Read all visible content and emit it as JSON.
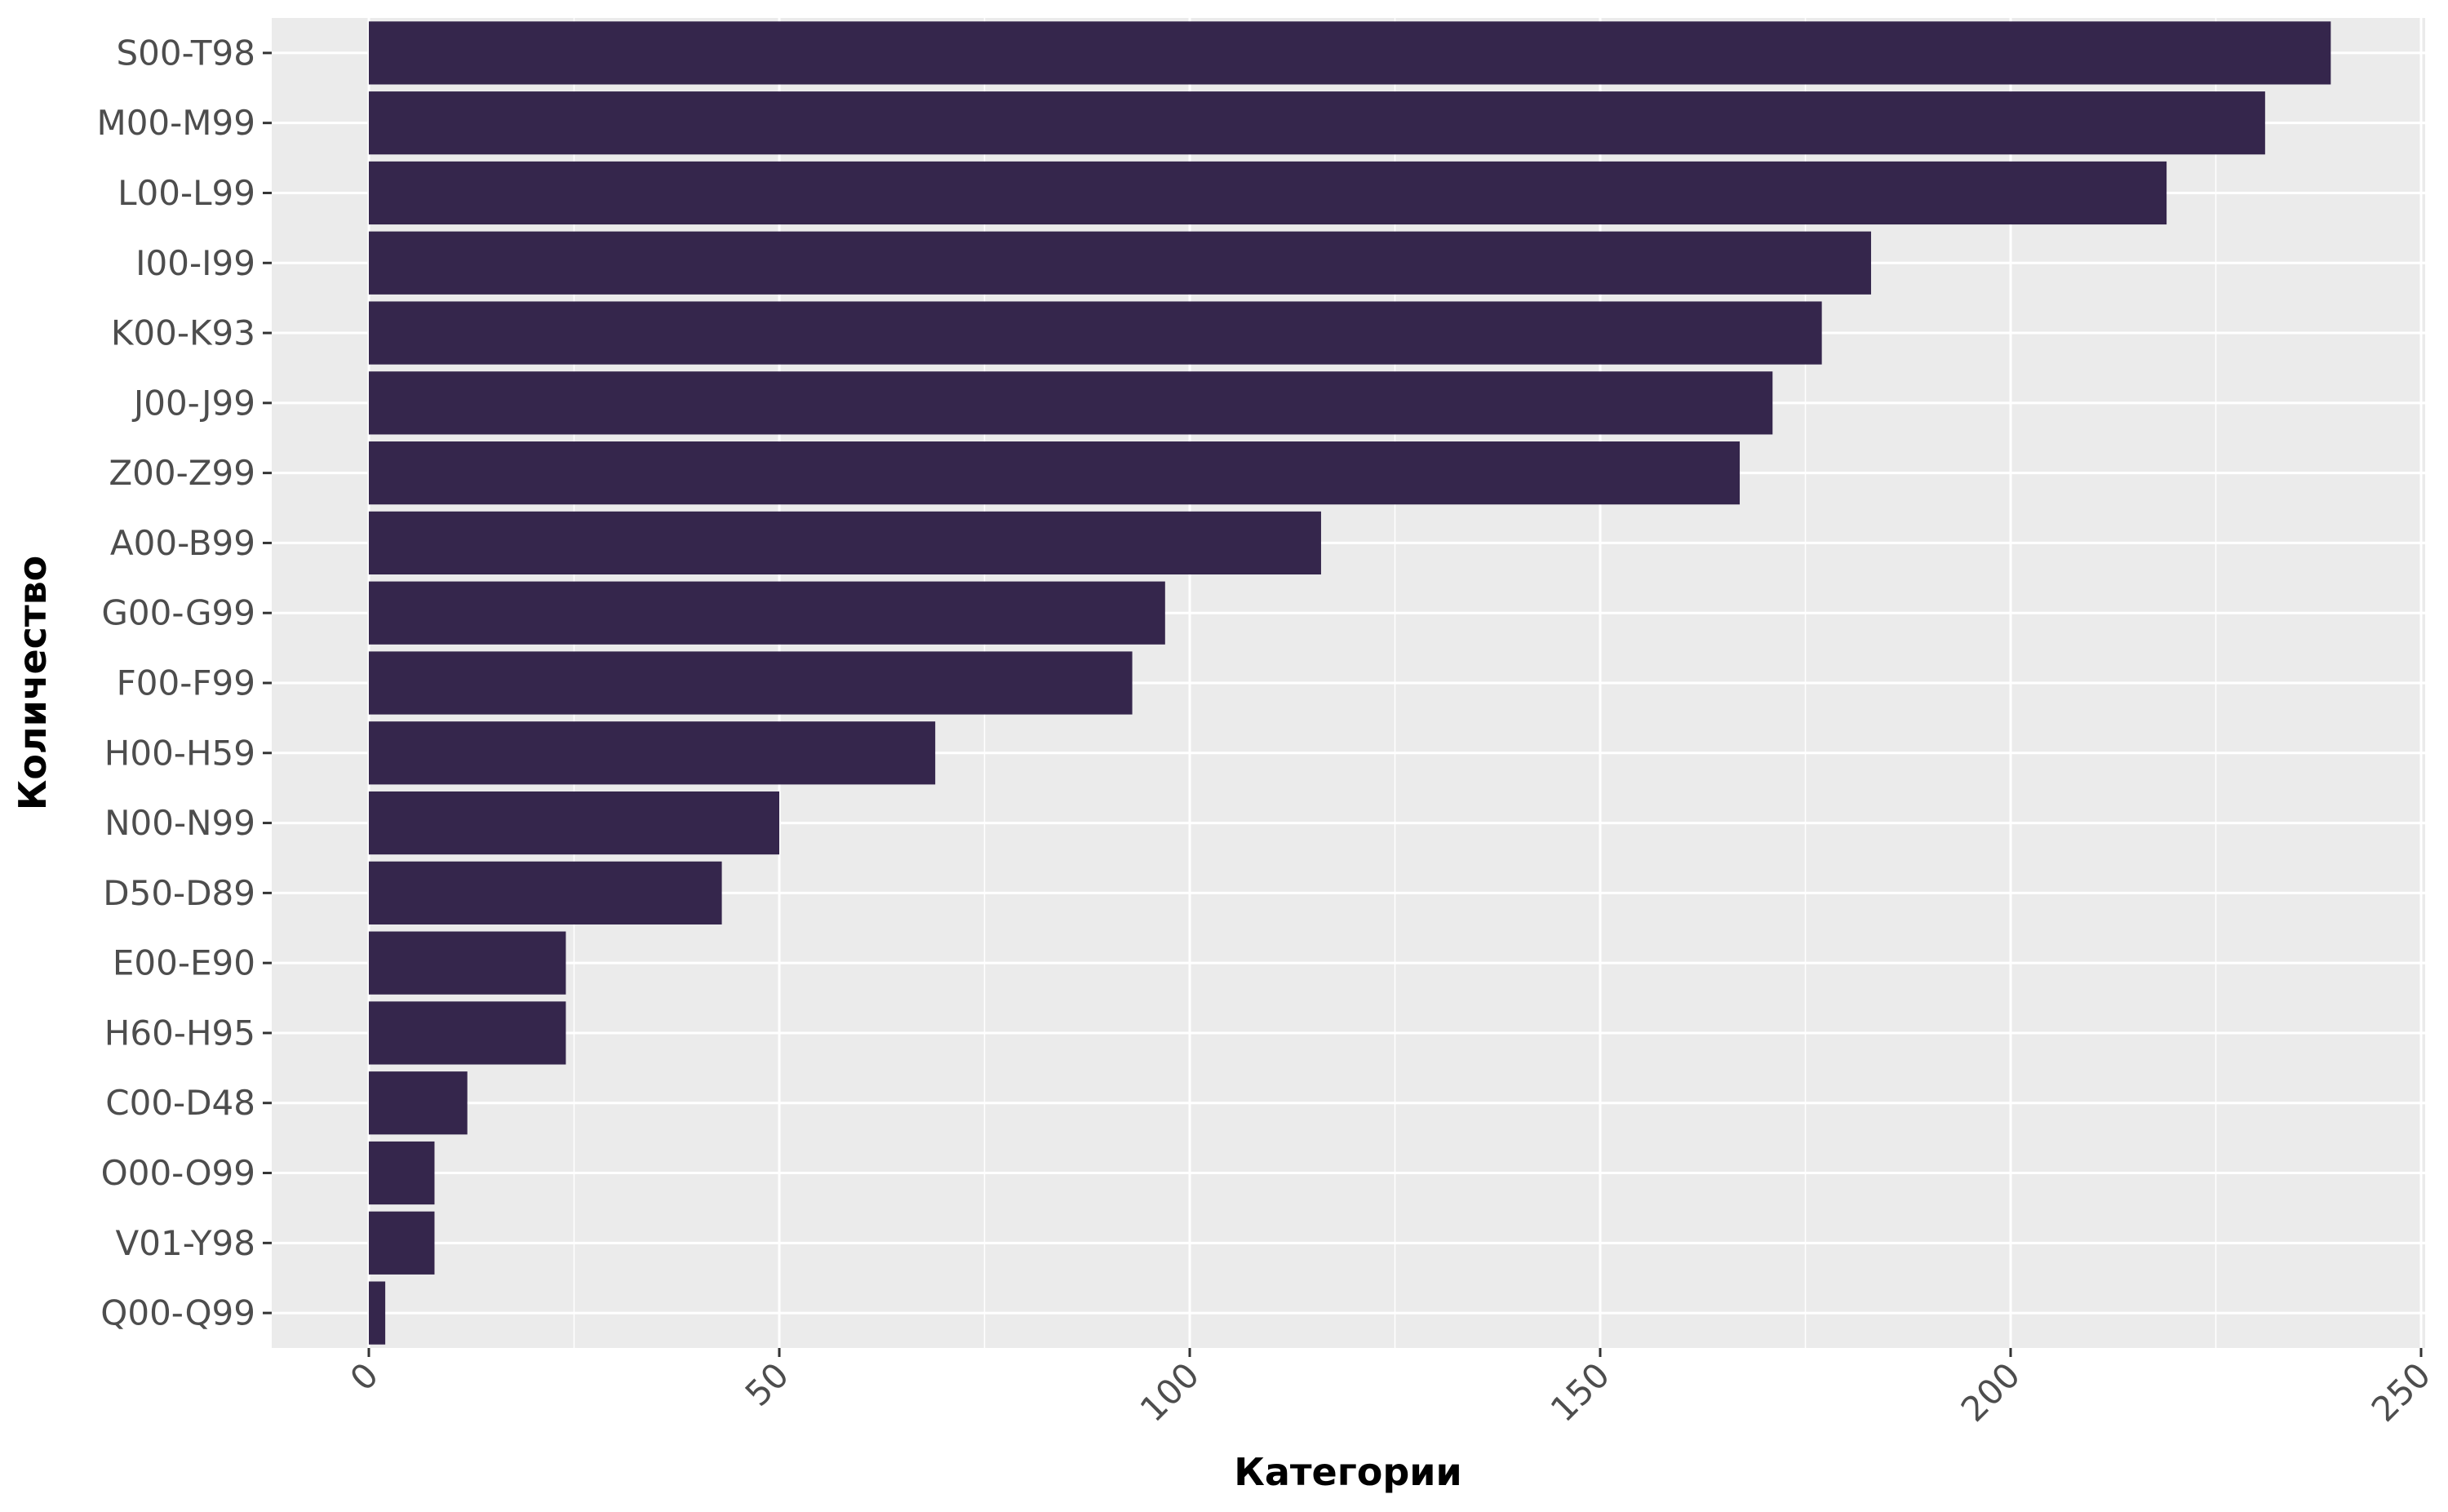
{
  "chart_data": {
    "type": "bar",
    "orientation": "horizontal",
    "xlabel": "Категории",
    "ylabel": "Количество",
    "xlim": [
      -12,
      250
    ],
    "x_ticks": [
      0,
      50,
      100,
      150,
      200,
      250
    ],
    "grid": true,
    "bar_color": "#35264c",
    "panel_color": "#ebebeb",
    "grid_color": "#ffffff",
    "categories": [
      "S00-T98",
      "M00-M99",
      "L00-L99",
      "I00-I99",
      "K00-K93",
      "J00-J99",
      "Z00-Z99",
      "A00-B99",
      "G00-G99",
      "F00-F99",
      "H00-H59",
      "N00-N99",
      "D50-D89",
      "E00-E90",
      "H60-H95",
      "C00-D48",
      "O00-O99",
      "V01-Y98",
      "Q00-Q99"
    ],
    "values": [
      239,
      231,
      219,
      183,
      177,
      171,
      167,
      116,
      97,
      93,
      69,
      50,
      43,
      24,
      24,
      12,
      8,
      8,
      2
    ]
  }
}
